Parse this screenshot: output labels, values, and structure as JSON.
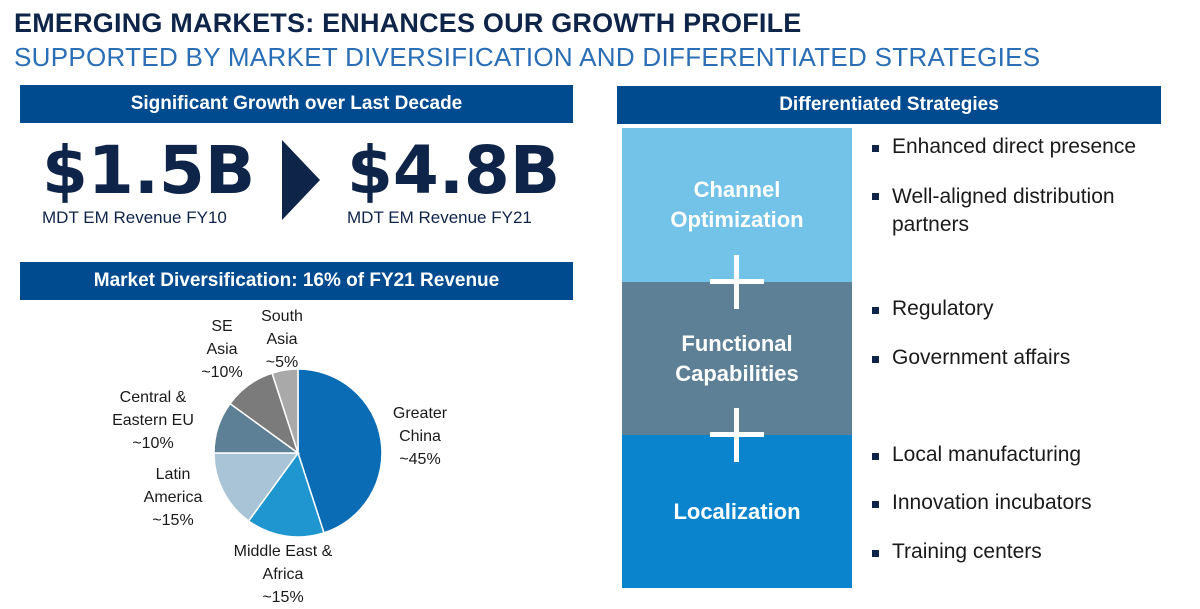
{
  "header": {
    "title": "EMERGING MARKETS: ENHANCES OUR GROWTH PROFILE",
    "subtitle": "SUPPORTED BY MARKET DIVERSIFICATION AND DIFFERENTIATED STRATEGIES"
  },
  "growth": {
    "banner": "Significant Growth over Last Decade",
    "from_value": "$1.5B",
    "from_caption": "MDT EM Revenue FY10",
    "to_value": "$4.8B",
    "to_caption": "MDT EM Revenue FY21"
  },
  "diversification": {
    "banner": "Market Diversification: 16% of FY21 Revenue"
  },
  "chart_data": {
    "type": "pie",
    "slices": [
      {
        "name": "Greater China",
        "label_lines": [
          "Greater",
          "China",
          "~45%"
        ],
        "value": 45,
        "color": "#0a6cb5"
      },
      {
        "name": "Middle East & Africa",
        "label_lines": [
          "Middle East &",
          "Africa",
          "~15%"
        ],
        "value": 15,
        "color": "#1f96d0"
      },
      {
        "name": "Latin America",
        "label_lines": [
          "Latin",
          "America",
          "~15%"
        ],
        "value": 15,
        "color": "#a8c4d6"
      },
      {
        "name": "Central & Eastern EU",
        "label_lines": [
          "Central &",
          "Eastern EU",
          "~10%"
        ],
        "value": 10,
        "color": "#5d8096"
      },
      {
        "name": "SE Asia",
        "label_lines": [
          "SE",
          "Asia",
          "~10%"
        ],
        "value": 10,
        "color": "#7b7b7b"
      },
      {
        "name": "South Asia",
        "label_lines": [
          "South",
          "Asia",
          "~5%"
        ],
        "value": 5,
        "color": "#a9a9a9"
      }
    ]
  },
  "strategies": {
    "banner": "Differentiated Strategies",
    "blocks": [
      {
        "label": "Channel Optimization",
        "color": "#73c2e8",
        "bullets": [
          "Enhanced direct presence",
          "Well-aligned distribution partners"
        ]
      },
      {
        "label": "Functional Capabilities",
        "color": "#5d8096",
        "bullets": [
          "Regulatory",
          "Government affairs"
        ]
      },
      {
        "label": "Localization",
        "color": "#0a84cc",
        "bullets": [
          "Local manufacturing",
          "Innovation incubators",
          "Training centers"
        ]
      }
    ]
  }
}
